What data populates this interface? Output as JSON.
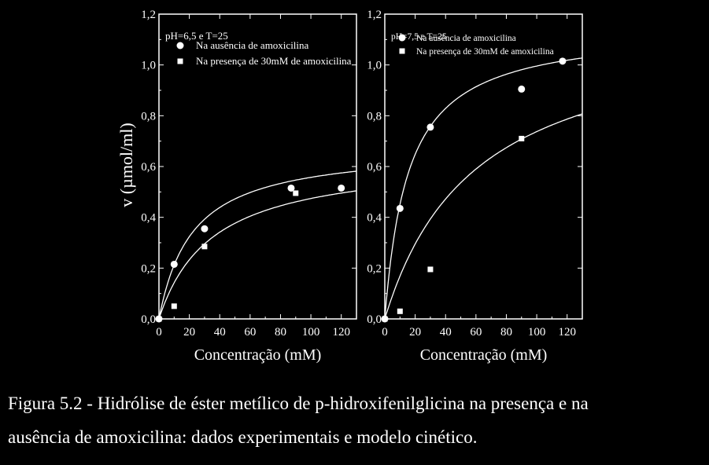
{
  "y_axis_label": "v (µmol/ml)",
  "caption": {
    "line1": "Figura 5.2 - Hidrólise de éster metílico de p-hidroxifenilglicina na presença e na",
    "line2": "ausência de amoxicilina: dados experimentais e modelo cinético."
  },
  "chart_data": [
    {
      "type": "scatter",
      "annotation": "pH=6,5 e T=25",
      "xlabel": "Concentração (mM)",
      "ylabel": "v (µmol/ml)",
      "xlim": [
        0,
        130
      ],
      "ylim": [
        0,
        1.2
      ],
      "xticks": [
        "0",
        "20",
        "40",
        "60",
        "80",
        "100",
        "120"
      ],
      "yticks": [
        "0,0",
        "0,2",
        "0,4",
        "0,6",
        "0,8",
        "1,0",
        "1,2"
      ],
      "legend": "top-left",
      "series": [
        {
          "name": "Na ausência de amoxicilina",
          "marker": "circle",
          "x": [
            0,
            10,
            30,
            87,
            120
          ],
          "y": [
            0.0,
            0.215,
            0.355,
            0.515,
            0.515
          ]
        },
        {
          "name": "Na presença de 30mM de amoxicilina",
          "marker": "square",
          "x": [
            0,
            10,
            30,
            90
          ],
          "y": [
            0.0,
            0.05,
            0.285,
            0.495
          ]
        }
      ],
      "curves": [
        {
          "model": "michaelis-menten",
          "vmax": 0.68,
          "km": 22
        },
        {
          "model": "michaelis-menten",
          "vmax": 0.64,
          "km": 35
        }
      ]
    },
    {
      "type": "scatter",
      "annotation": "pH=7,5 e T=25",
      "xlabel": "Concentração (mM)",
      "xlim": [
        0,
        130
      ],
      "ylim": [
        0,
        1.2
      ],
      "xticks": [
        "0",
        "20",
        "40",
        "60",
        "80",
        "100",
        "120"
      ],
      "yticks": [
        "0,0",
        "0,2",
        "0,4",
        "0,6",
        "0,8",
        "1,0",
        "1,2"
      ],
      "legend": "top-left",
      "series": [
        {
          "name": "Na ausência de amoxicilina",
          "marker": "circle",
          "x": [
            0,
            10,
            30,
            90,
            117
          ],
          "y": [
            0.0,
            0.435,
            0.755,
            0.905,
            1.015
          ]
        },
        {
          "name": "Na presença de 30mM de amoxicilina",
          "marker": "square",
          "x": [
            0,
            10,
            30,
            90
          ],
          "y": [
            0.0,
            0.03,
            0.195,
            0.71
          ]
        }
      ],
      "curves": [
        {
          "model": "michaelis-menten",
          "vmax": 1.15,
          "km": 15.5
        },
        {
          "model": "michaelis-menten",
          "vmax": 1.18,
          "km": 60
        }
      ]
    }
  ]
}
